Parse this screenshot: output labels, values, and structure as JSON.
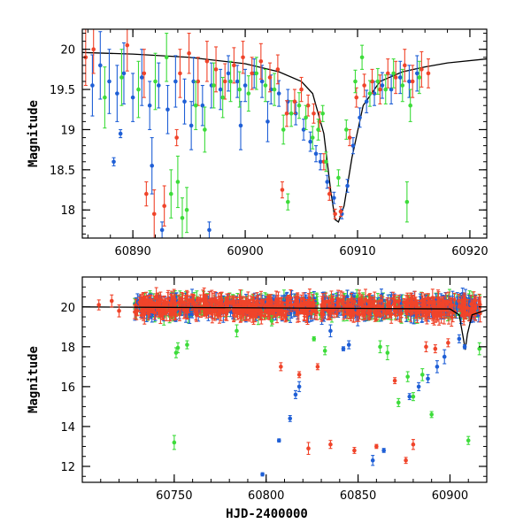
{
  "chart_data": [
    {
      "type": "scatter",
      "title": "",
      "xlabel": "",
      "ylabel": "Magnitude",
      "xlim": [
        60885.5,
        60921.5
      ],
      "ylim": [
        20.25,
        17.65
      ],
      "y_inverted": true,
      "x_ticks": [
        60890,
        60900,
        60910,
        60920
      ],
      "y_ticks": [
        18,
        18.5,
        19,
        19.5,
        20
      ],
      "colors": {
        "blue": "#1f5fd6",
        "red": "#f0442a",
        "green": "#3ddc3a",
        "model": "#000000"
      },
      "model_curve": {
        "name": "",
        "x": [
          60885.5,
          60890,
          60895,
          60900,
          60903,
          60905,
          60906,
          60907,
          60907.6,
          60908,
          60908.3,
          60908.8,
          60909.5,
          60910.5,
          60912,
          60914,
          60916,
          60918,
          60921.5
        ],
        "y": [
          19.96,
          19.94,
          19.9,
          19.82,
          19.72,
          19.6,
          19.45,
          18.95,
          18.25,
          17.88,
          17.85,
          18.05,
          18.65,
          19.3,
          19.6,
          19.72,
          19.78,
          19.83,
          19.88
        ]
      },
      "series": [
        {
          "color": "blue",
          "x": [
            60886.4,
            60887.1,
            60887.9,
            60888.6,
            60889.2,
            60890.0,
            60890.8,
            60891.5,
            60892.3,
            60893.1,
            60893.8,
            60894.6,
            60895.4,
            60896.2,
            60897.0,
            60897.8,
            60898.5,
            60899.3,
            60900.0,
            60900.8,
            60901.5,
            60902.3,
            60903.0,
            60903.8,
            60904.5,
            60905.2,
            60905.8,
            60906.3,
            60906.7,
            60907.3,
            60907.9,
            60908.6,
            60909.1,
            60909.6,
            60910.2,
            60910.8,
            60911.5,
            60912.2,
            60913.0,
            60913.8,
            60914.6,
            60915.3,
            60888.3,
            60888.9,
            60891.7,
            60892.6,
            60895.2,
            60896.8,
            60899.6,
            60902.0
          ],
          "y": [
            19.55,
            19.8,
            19.6,
            19.45,
            19.7,
            19.4,
            19.65,
            19.3,
            19.55,
            19.25,
            19.6,
            19.35,
            19.6,
            19.3,
            19.55,
            19.5,
            19.7,
            19.6,
            19.55,
            19.7,
            19.6,
            19.5,
            19.45,
            19.35,
            19.2,
            19.0,
            18.85,
            18.7,
            18.6,
            18.35,
            18.15,
            17.95,
            18.3,
            18.8,
            19.15,
            19.35,
            19.45,
            19.55,
            19.5,
            19.65,
            19.6,
            19.7,
            18.6,
            18.95,
            18.55,
            17.75,
            19.05,
            17.75,
            19.05,
            19.1
          ],
          "err": [
            0.38,
            0.42,
            0.4,
            0.35,
            0.38,
            0.3,
            0.35,
            0.3,
            0.28,
            0.3,
            0.32,
            0.28,
            0.3,
            0.25,
            0.28,
            0.25,
            0.22,
            0.2,
            0.2,
            0.18,
            0.2,
            0.18,
            0.16,
            0.15,
            0.14,
            0.13,
            0.12,
            0.1,
            0.1,
            0.08,
            0.07,
            0.06,
            0.08,
            0.1,
            0.12,
            0.14,
            0.15,
            0.16,
            0.18,
            0.2,
            0.2,
            0.22,
            0.05,
            0.05,
            0.35,
            0.1,
            0.3,
            0.1,
            0.3,
            0.25
          ]
        },
        {
          "color": "red",
          "x": [
            60885.8,
            60886.5,
            60889.5,
            60891.0,
            60891.9,
            60892.8,
            60894.2,
            60895.0,
            60895.8,
            60896.6,
            60897.4,
            60898.2,
            60899.0,
            60899.8,
            60900.6,
            60901.4,
            60902.2,
            60902.9,
            60903.7,
            60904.4,
            60905.0,
            60905.6,
            60906.1,
            60906.6,
            60907.0,
            60907.5,
            60908.0,
            60908.5,
            60909.3,
            60909.9,
            60910.6,
            60911.3,
            60912.0,
            60912.7,
            60913.4,
            60914.2,
            60914.9,
            60915.7,
            60916.3,
            60893.9,
            60903.3,
            60891.2
          ],
          "y": [
            19.9,
            20.0,
            20.05,
            19.7,
            17.95,
            18.05,
            19.7,
            19.95,
            19.6,
            19.85,
            19.75,
            19.6,
            19.8,
            19.9,
            19.7,
            19.85,
            19.65,
            19.75,
            19.2,
            19.35,
            19.5,
            19.3,
            19.2,
            19.1,
            18.6,
            18.2,
            17.95,
            17.98,
            18.9,
            19.4,
            19.55,
            19.6,
            19.5,
            19.7,
            19.65,
            19.8,
            19.6,
            19.75,
            19.7,
            18.9,
            18.25,
            18.2
          ],
          "err": [
            0.35,
            0.3,
            0.32,
            0.3,
            0.3,
            0.25,
            0.3,
            0.25,
            0.3,
            0.25,
            0.28,
            0.22,
            0.22,
            0.2,
            0.2,
            0.22,
            0.18,
            0.18,
            0.16,
            0.15,
            0.15,
            0.13,
            0.12,
            0.12,
            0.1,
            0.08,
            0.06,
            0.06,
            0.1,
            0.12,
            0.14,
            0.15,
            0.18,
            0.18,
            0.2,
            0.2,
            0.2,
            0.22,
            0.18,
            0.1,
            0.1,
            0.15
          ]
        },
        {
          "color": "green",
          "x": [
            60887.5,
            60889.0,
            60890.5,
            60892.0,
            60893.4,
            60894.0,
            60894.8,
            60895.6,
            60896.4,
            60897.2,
            60898.0,
            60898.7,
            60899.5,
            60900.3,
            60901.0,
            60901.8,
            60902.6,
            60903.4,
            60904.1,
            60904.8,
            60905.4,
            60906.0,
            60906.5,
            60907.2,
            60908.3,
            60909.0,
            60909.8,
            60910.4,
            60911.1,
            60911.8,
            60912.5,
            60913.2,
            60914.0,
            60914.7,
            60915.5,
            60894.4,
            60903.8,
            60906.9,
            60914.4,
            60893.0
          ],
          "y": [
            19.4,
            19.65,
            19.5,
            19.6,
            18.2,
            18.35,
            18.0,
            19.3,
            19.0,
            19.55,
            19.4,
            19.6,
            19.5,
            19.45,
            19.7,
            19.55,
            19.5,
            19.0,
            19.2,
            19.3,
            19.15,
            18.9,
            19.0,
            18.6,
            18.4,
            19.0,
            19.6,
            19.9,
            19.45,
            19.6,
            19.5,
            19.7,
            19.55,
            19.3,
            19.65,
            17.9,
            18.1,
            19.2,
            18.1,
            19.9
          ],
          "err": [
            0.38,
            0.35,
            0.35,
            0.35,
            0.3,
            0.32,
            0.28,
            0.3,
            0.28,
            0.28,
            0.25,
            0.25,
            0.22,
            0.22,
            0.2,
            0.2,
            0.2,
            0.18,
            0.16,
            0.16,
            0.15,
            0.14,
            0.13,
            0.12,
            0.1,
            0.12,
            0.14,
            0.15,
            0.16,
            0.16,
            0.18,
            0.18,
            0.2,
            0.2,
            0.2,
            0.25,
            0.1,
            0.1,
            0.25,
            0.3
          ]
        }
      ]
    },
    {
      "type": "scatter",
      "title": "",
      "xlabel": "HJD-2400000",
      "ylabel": "Magnitude",
      "xlim": [
        60700,
        60920
      ],
      "ylim": [
        21.5,
        11.2
      ],
      "y_inverted": true,
      "x_ticks": [
        60750,
        60800,
        60850,
        60900
      ],
      "y_ticks": [
        12,
        14,
        16,
        18,
        20
      ],
      "colors": {
        "blue": "#1f5fd6",
        "red": "#f0442a",
        "green": "#3ddc3a",
        "model": "#000000"
      },
      "model_curve": {
        "name": "",
        "x": [
          60700,
          60900,
          60905,
          60907.6,
          60908.3,
          60909.5,
          60912,
          60920
        ],
        "y": [
          20.0,
          19.9,
          19.6,
          18.25,
          17.85,
          18.65,
          19.6,
          19.85
        ]
      },
      "dense_band": {
        "x_start": 60728,
        "x_end": 60917,
        "center": 20.0,
        "half_width": 0.45
      },
      "series": [
        {
          "color": "blue",
          "x": [
            60798,
            60807,
            60813,
            60816,
            60818,
            60842,
            60858,
            60864,
            60878,
            60883,
            60888,
            60893,
            60897,
            60908,
            60845,
            60835,
            60905
          ],
          "y": [
            11.6,
            13.3,
            14.4,
            15.6,
            16.0,
            17.9,
            12.3,
            12.8,
            15.5,
            16.0,
            16.4,
            17.0,
            17.5,
            18.0,
            18.1,
            18.8,
            18.4
          ],
          "err": [
            0.08,
            0.08,
            0.15,
            0.2,
            0.25,
            0.1,
            0.25,
            0.1,
            0.15,
            0.2,
            0.2,
            0.3,
            0.35,
            0.1,
            0.2,
            0.3,
            0.2
          ]
        },
        {
          "color": "red",
          "x": [
            60709,
            60716,
            60720,
            60808,
            60818,
            60823,
            60828,
            60835,
            60848,
            60860,
            60870,
            60876,
            60880,
            60887,
            60892,
            60899
          ],
          "y": [
            20.1,
            20.3,
            19.8,
            17.0,
            16.6,
            12.9,
            17.0,
            13.1,
            12.8,
            13.0,
            16.3,
            12.3,
            13.1,
            18.0,
            17.9,
            18.2
          ],
          "err": [
            0.25,
            0.3,
            0.3,
            0.2,
            0.15,
            0.3,
            0.15,
            0.2,
            0.15,
            0.1,
            0.15,
            0.15,
            0.25,
            0.25,
            0.2,
            0.2
          ]
        },
        {
          "color": "green",
          "x": [
            60750,
            60751,
            60752,
            60757,
            60784,
            60803,
            60826,
            60832,
            60862,
            60866,
            60872,
            60877,
            60880,
            60885,
            60890,
            60910,
            60916
          ],
          "y": [
            13.2,
            17.7,
            17.95,
            18.1,
            18.8,
            19.3,
            18.4,
            17.8,
            18.0,
            17.7,
            15.2,
            16.5,
            15.5,
            16.6,
            14.6,
            13.3,
            17.9
          ],
          "err": [
            0.35,
            0.25,
            0.25,
            0.2,
            0.3,
            0.25,
            0.1,
            0.2,
            0.3,
            0.35,
            0.2,
            0.25,
            0.2,
            0.3,
            0.15,
            0.2,
            0.3
          ]
        }
      ]
    }
  ]
}
